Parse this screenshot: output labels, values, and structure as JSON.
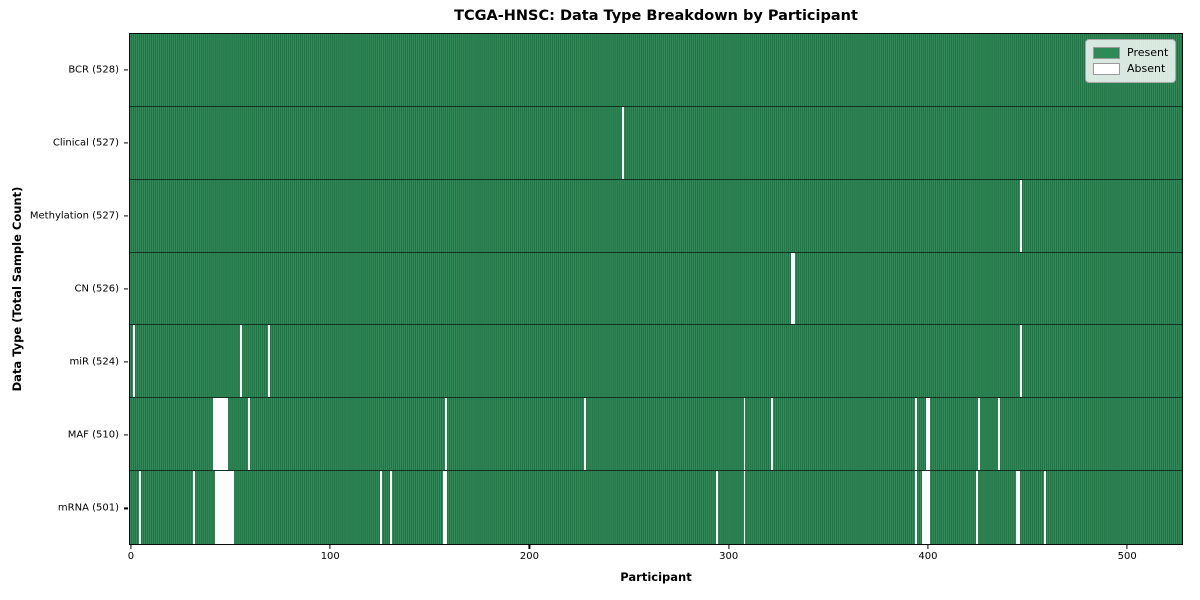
{
  "title": "TCGA-HNSC: Data Type Breakdown by Participant",
  "chart_data": {
    "type": "heatmap",
    "title": "TCGA-HNSC: Data Type Breakdown by Participant",
    "xlabel": "Participant",
    "ylabel": "Data Type (Total Sample Count)",
    "x_ticks": [
      0,
      100,
      200,
      300,
      400,
      500
    ],
    "x_domain": [
      -1,
      528
    ],
    "n_participants": 528,
    "grid": false,
    "legend": {
      "position": "upper right",
      "entries": [
        {
          "label": "Present",
          "color": "#2e8b57"
        },
        {
          "label": "Absent",
          "color": "#ffffff"
        }
      ]
    },
    "colors": {
      "present": "#2e8b57",
      "present_edge": "#1d5938",
      "absent": "#ffffff",
      "plot_border": "#0a0a0a"
    },
    "rows": [
      {
        "label": "BCR (528)",
        "data_type": "BCR",
        "count": 528,
        "absent_participants": []
      },
      {
        "label": "Clinical (527)",
        "data_type": "Clinical",
        "count": 527,
        "absent_participants": [
          247
        ]
      },
      {
        "label": "Methylation (527)",
        "data_type": "Methylation",
        "count": 527,
        "absent_participants": [
          447
        ]
      },
      {
        "label": "CN (526)",
        "data_type": "CN",
        "count": 526,
        "absent_participants": [
          332,
          333
        ]
      },
      {
        "label": "miR (524)",
        "data_type": "miR",
        "count": 524,
        "absent_participants": [
          1,
          55,
          69,
          447
        ]
      },
      {
        "label": "MAF (510)",
        "data_type": "MAF",
        "count": 510,
        "absent_participants": [
          41,
          42,
          43,
          44,
          45,
          46,
          47,
          48,
          59,
          158,
          228,
          308,
          322,
          394,
          400,
          401,
          426,
          436
        ]
      },
      {
        "label": "mRNA (501)",
        "data_type": "mRNA",
        "count": 501,
        "absent_participants": [
          4,
          31,
          42,
          43,
          44,
          45,
          46,
          47,
          48,
          49,
          50,
          51,
          125,
          130,
          157,
          158,
          294,
          308,
          394,
          398,
          399,
          400,
          401,
          425,
          445,
          446,
          459
        ]
      }
    ]
  }
}
